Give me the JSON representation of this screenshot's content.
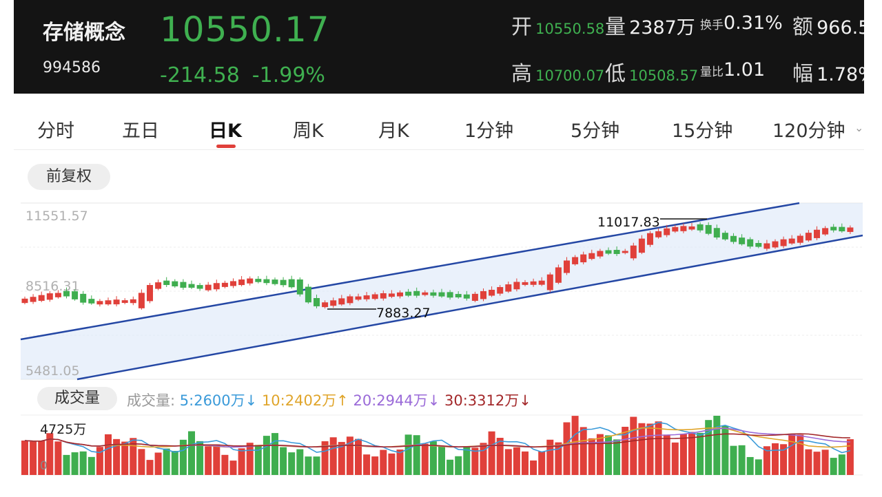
{
  "header": {
    "name": "存储概念",
    "code": "994586",
    "price": "10550.17",
    "change": "-214.58",
    "change_pct": "-1.99%",
    "open_label": "开",
    "open_value": "10550.58",
    "volume_label": "量",
    "volume_value": "2387万",
    "turnover_label": "换手",
    "turnover_value": "0.31%",
    "amount_label": "额",
    "amount_value": "966.5",
    "high_label": "高",
    "high_value": "10700.07",
    "low_label": "低",
    "low_value": "10508.57",
    "ratio_label": "量比",
    "ratio_value": "1.01",
    "amplitude_label": "幅",
    "amplitude_value": "1.78%"
  },
  "tabs": [
    "分时",
    "五日",
    "日K",
    "周K",
    "月K",
    "1分钟",
    "5分钟",
    "15分钟",
    "120分钟"
  ],
  "active_tab": "日K",
  "adjust_label": "前复权",
  "price_axis": [
    "11551.57",
    "8516.31",
    "5481.05"
  ],
  "annotations": {
    "high": "11017.83",
    "low": "7883.27"
  },
  "volume": {
    "title": "成交量",
    "legend_label": "成交量:",
    "ma5": "5:2600万↓",
    "ma10": "10:2402万↑",
    "ma20": "20:2944万↓",
    "ma30": "30:3312万↓",
    "max_label": "4725万",
    "zero_label": "0"
  },
  "colors": {
    "up": "#e0403a",
    "down": "#3fae4f",
    "channel": "#2447a4",
    "ma5": "#3a9ad9",
    "ma10": "#e0a52b",
    "ma20": "#9a6ad8",
    "ma30": "#a3282a"
  }
}
